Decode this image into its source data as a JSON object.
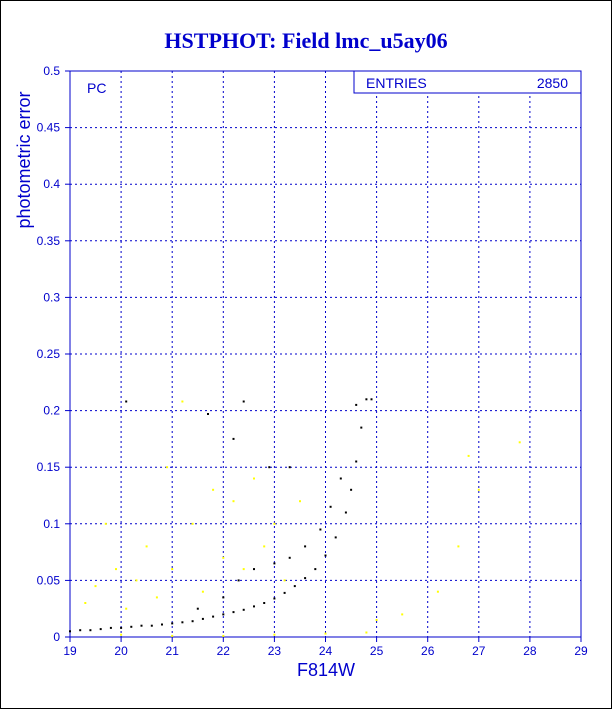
{
  "chart_data": {
    "type": "scatter",
    "title": "HSTPHOT: Field lmc_u5ay06",
    "xlabel": "F814W",
    "ylabel": "photometric error",
    "xlim": [
      19,
      29
    ],
    "ylim": [
      0,
      0.5
    ],
    "x_ticks": [
      "19",
      "20",
      "21",
      "22",
      "23",
      "24",
      "25",
      "26",
      "27",
      "28",
      "29"
    ],
    "y_ticks": [
      "0",
      "0.05",
      "0.1",
      "0.15",
      "0.2",
      "0.25",
      "0.3",
      "0.35",
      "0.4",
      "0.45",
      "0.5"
    ],
    "grid": true,
    "annotation": "PC",
    "stats_box": {
      "label": "ENTRIES",
      "value": "2850",
      "position": "top-right"
    },
    "colors": {
      "title": "#0000cc",
      "axes": "#0000cc",
      "grid": "#0000cc",
      "good": "#000000",
      "flagged": "#ffff00"
    },
    "series": [
      {
        "color": "#000000",
        "points": [
          [
            19.0,
            0.005
          ],
          [
            19.2,
            0.006
          ],
          [
            19.4,
            0.006
          ],
          [
            19.6,
            0.007
          ],
          [
            19.8,
            0.008
          ],
          [
            20.0,
            0.008
          ],
          [
            20.2,
            0.009
          ],
          [
            20.4,
            0.01
          ],
          [
            20.6,
            0.01
          ],
          [
            20.8,
            0.011
          ],
          [
            21.0,
            0.012
          ],
          [
            21.2,
            0.013
          ],
          [
            21.4,
            0.014
          ],
          [
            21.6,
            0.016
          ],
          [
            21.8,
            0.018
          ],
          [
            22.0,
            0.02
          ],
          [
            22.2,
            0.022
          ],
          [
            22.4,
            0.024
          ],
          [
            22.6,
            0.027
          ],
          [
            22.8,
            0.03
          ],
          [
            23.0,
            0.034
          ],
          [
            23.2,
            0.039
          ],
          [
            23.4,
            0.045
          ],
          [
            23.6,
            0.052
          ],
          [
            23.8,
            0.06
          ],
          [
            24.0,
            0.072
          ],
          [
            24.2,
            0.088
          ],
          [
            24.4,
            0.11
          ],
          [
            24.5,
            0.13
          ],
          [
            24.6,
            0.155
          ],
          [
            24.7,
            0.185
          ],
          [
            24.8,
            0.21
          ],
          [
            21.5,
            0.025
          ],
          [
            22.0,
            0.035
          ],
          [
            22.3,
            0.05
          ],
          [
            22.6,
            0.06
          ],
          [
            23.0,
            0.065
          ],
          [
            23.3,
            0.07
          ],
          [
            23.6,
            0.08
          ],
          [
            23.9,
            0.095
          ],
          [
            24.1,
            0.115
          ],
          [
            24.3,
            0.14
          ],
          [
            20.1,
            0.208
          ],
          [
            21.7,
            0.197
          ],
          [
            22.4,
            0.208
          ],
          [
            22.2,
            0.175
          ],
          [
            22.9,
            0.15
          ],
          [
            23.3,
            0.15
          ],
          [
            24.6,
            0.205
          ],
          [
            24.9,
            0.21
          ]
        ]
      },
      {
        "color": "#ffff00",
        "points": [
          [
            19.3,
            0.03
          ],
          [
            19.5,
            0.045
          ],
          [
            19.7,
            0.1
          ],
          [
            19.9,
            0.06
          ],
          [
            20.1,
            0.025
          ],
          [
            20.3,
            0.05
          ],
          [
            20.5,
            0.08
          ],
          [
            20.7,
            0.035
          ],
          [
            20.9,
            0.15
          ],
          [
            21.0,
            0.06
          ],
          [
            21.2,
            0.208
          ],
          [
            21.4,
            0.1
          ],
          [
            21.6,
            0.04
          ],
          [
            21.8,
            0.13
          ],
          [
            22.0,
            0.07
          ],
          [
            22.2,
            0.12
          ],
          [
            22.4,
            0.06
          ],
          [
            22.6,
            0.14
          ],
          [
            22.8,
            0.08
          ],
          [
            23.0,
            0.1
          ],
          [
            23.2,
            0.05
          ],
          [
            23.5,
            0.12
          ],
          [
            20.0,
            0.002
          ],
          [
            21.0,
            0.001
          ],
          [
            22.0,
            0.001
          ],
          [
            23.0,
            0.002
          ],
          [
            24.0,
            0.003
          ],
          [
            25.0,
            0.015
          ],
          [
            25.5,
            0.02
          ],
          [
            26.2,
            0.04
          ],
          [
            26.6,
            0.08
          ],
          [
            27.0,
            0.13
          ],
          [
            27.8,
            0.172
          ],
          [
            26.8,
            0.16
          ],
          [
            24.8,
            0.004
          ]
        ]
      }
    ]
  }
}
